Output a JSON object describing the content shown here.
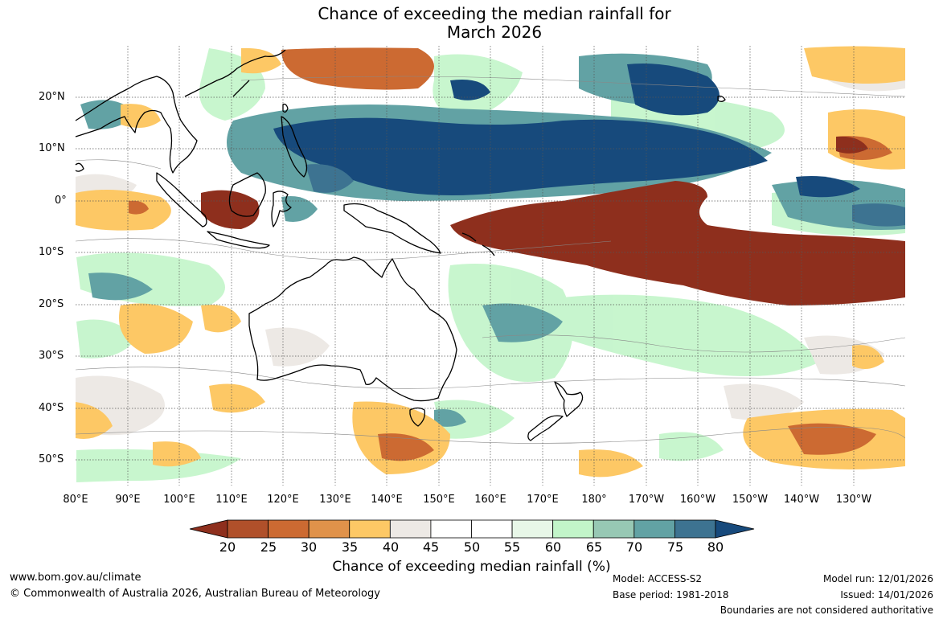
{
  "title": {
    "line1": "Chance of exceeding the median rainfall for",
    "line2": "March 2026"
  },
  "map": {
    "lat_labels": [
      "20°N",
      "10°N",
      "0°",
      "10°S",
      "20°S",
      "30°S",
      "40°S",
      "50°S"
    ],
    "lon_labels": [
      "80°E",
      "90°E",
      "100°E",
      "110°E",
      "120°E",
      "130°E",
      "140°E",
      "150°E",
      "160°E",
      "170°E",
      "180°",
      "170°W",
      "160°W",
      "150°W",
      "140°W",
      "130°W"
    ],
    "lat_range": [
      -55,
      30
    ],
    "lon_range": [
      80,
      240
    ]
  },
  "colorbar": {
    "ticks": [
      "20",
      "25",
      "30",
      "35",
      "40",
      "45",
      "50",
      "55",
      "60",
      "65",
      "70",
      "75",
      "80"
    ],
    "colors": [
      "#8e2f1d",
      "#b0502a",
      "#cc6a32",
      "#e0924a",
      "#fdc865",
      "#ede9e5",
      "#ffffff",
      "#ffffff",
      "#e8f7e8",
      "#c2f5c9",
      "#97c8b4",
      "#62a2a4",
      "#3d7391",
      "#174a7c"
    ],
    "title": "Chance of exceeding median rainfall (%)"
  },
  "footer": {
    "website": "www.bom.gov.au/climate",
    "copyright": "© Commonwealth of Australia 2026, Australian Bureau of Meteorology",
    "model": "Model: ACCESS-S2",
    "base_period": "Base period: 1981-2018",
    "model_run": "Model run: 12/01/2026",
    "issued": "Issued: 14/01/2026",
    "disclaimer": "Boundaries are not considered authoritative"
  }
}
